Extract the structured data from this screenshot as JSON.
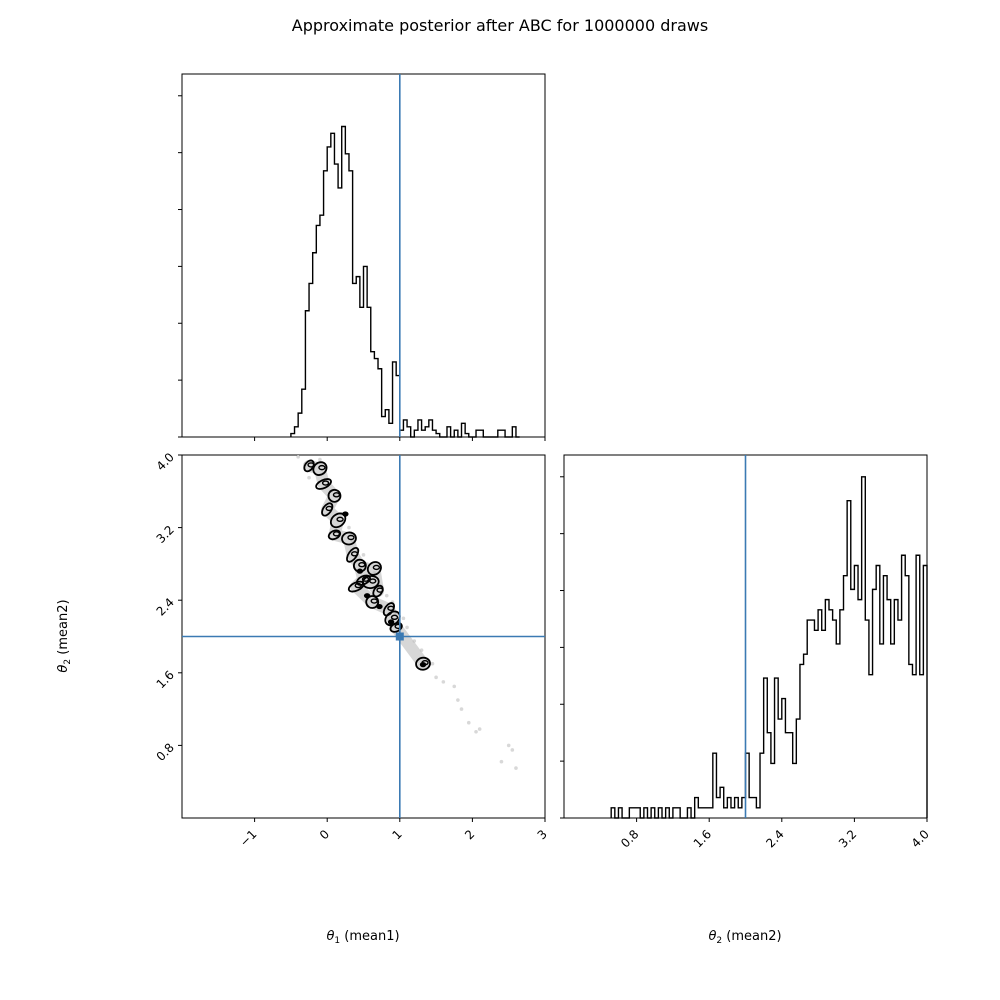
{
  "figure": {
    "title": "Approximate posterior after ABC for 1000000 draws"
  },
  "colors": {
    "truth_line": "#3b7ab3",
    "histogram": "#000000",
    "contour": "#000000",
    "scatter_points": "#d8d8d8"
  },
  "chart_data": [
    {
      "type": "histogram",
      "panel": "top-left",
      "variable": "theta_1",
      "xlim": [
        -2,
        3
      ],
      "truth_value": 1,
      "x_ticks": [
        "−1",
        "0",
        "1",
        "2",
        "3"
      ],
      "x_tick_values": [
        -1,
        0,
        1,
        2,
        3
      ],
      "y_tick_labels_shown": false,
      "bins": [
        {
          "x0": -0.5,
          "x1": -0.45,
          "h": 0.01
        },
        {
          "x0": -0.45,
          "x1": -0.4,
          "h": 0.03
        },
        {
          "x0": -0.4,
          "x1": -0.35,
          "h": 0.07
        },
        {
          "x0": -0.35,
          "x1": -0.3,
          "h": 0.14
        },
        {
          "x0": -0.3,
          "x1": -0.25,
          "h": 0.37
        },
        {
          "x0": -0.25,
          "x1": -0.2,
          "h": 0.45
        },
        {
          "x0": -0.2,
          "x1": -0.15,
          "h": 0.54
        },
        {
          "x0": -0.15,
          "x1": -0.1,
          "h": 0.62
        },
        {
          "x0": -0.1,
          "x1": -0.05,
          "h": 0.65
        },
        {
          "x0": -0.05,
          "x1": 0.0,
          "h": 0.78
        },
        {
          "x0": 0.0,
          "x1": 0.05,
          "h": 0.85
        },
        {
          "x0": 0.05,
          "x1": 0.1,
          "h": 0.89
        },
        {
          "x0": 0.1,
          "x1": 0.15,
          "h": 0.8
        },
        {
          "x0": 0.15,
          "x1": 0.2,
          "h": 0.73
        },
        {
          "x0": 0.2,
          "x1": 0.25,
          "h": 0.91
        },
        {
          "x0": 0.25,
          "x1": 0.3,
          "h": 0.83
        },
        {
          "x0": 0.3,
          "x1": 0.35,
          "h": 0.78
        },
        {
          "x0": 0.35,
          "x1": 0.4,
          "h": 0.45
        },
        {
          "x0": 0.4,
          "x1": 0.45,
          "h": 0.47
        },
        {
          "x0": 0.45,
          "x1": 0.5,
          "h": 0.38
        },
        {
          "x0": 0.5,
          "x1": 0.55,
          "h": 0.5
        },
        {
          "x0": 0.55,
          "x1": 0.6,
          "h": 0.38
        },
        {
          "x0": 0.6,
          "x1": 0.65,
          "h": 0.25
        },
        {
          "x0": 0.65,
          "x1": 0.7,
          "h": 0.23
        },
        {
          "x0": 0.7,
          "x1": 0.75,
          "h": 0.2
        },
        {
          "x0": 0.75,
          "x1": 0.8,
          "h": 0.06
        },
        {
          "x0": 0.8,
          "x1": 0.85,
          "h": 0.08
        },
        {
          "x0": 0.85,
          "x1": 0.9,
          "h": 0.04
        },
        {
          "x0": 0.9,
          "x1": 0.95,
          "h": 0.22
        },
        {
          "x0": 0.95,
          "x1": 1.0,
          "h": 0.18
        },
        {
          "x0": 1.0,
          "x1": 1.05,
          "h": 0.02
        },
        {
          "x0": 1.05,
          "x1": 1.1,
          "h": 0.05
        },
        {
          "x0": 1.1,
          "x1": 1.15,
          "h": 0.03
        },
        {
          "x0": 1.15,
          "x1": 1.2,
          "h": 0.0
        },
        {
          "x0": 1.2,
          "x1": 1.25,
          "h": 0.02
        },
        {
          "x0": 1.25,
          "x1": 1.3,
          "h": 0.05
        },
        {
          "x0": 1.3,
          "x1": 1.35,
          "h": 0.02
        },
        {
          "x0": 1.35,
          "x1": 1.4,
          "h": 0.03
        },
        {
          "x0": 1.4,
          "x1": 1.45,
          "h": 0.05
        },
        {
          "x0": 1.45,
          "x1": 1.5,
          "h": 0.02
        },
        {
          "x0": 1.5,
          "x1": 1.55,
          "h": 0.01
        },
        {
          "x0": 1.55,
          "x1": 1.65,
          "h": 0.0
        },
        {
          "x0": 1.65,
          "x1": 1.7,
          "h": 0.03
        },
        {
          "x0": 1.7,
          "x1": 1.75,
          "h": 0.0
        },
        {
          "x0": 1.75,
          "x1": 1.8,
          "h": 0.02
        },
        {
          "x0": 1.8,
          "x1": 1.85,
          "h": 0.0
        },
        {
          "x0": 1.85,
          "x1": 1.9,
          "h": 0.04
        },
        {
          "x0": 1.9,
          "x1": 1.95,
          "h": 0.01
        },
        {
          "x0": 1.95,
          "x1": 2.05,
          "h": 0.0
        },
        {
          "x0": 2.05,
          "x1": 2.15,
          "h": 0.02
        },
        {
          "x0": 2.15,
          "x1": 2.35,
          "h": 0.0
        },
        {
          "x0": 2.35,
          "x1": 2.45,
          "h": 0.02
        },
        {
          "x0": 2.45,
          "x1": 2.55,
          "h": 0.0
        },
        {
          "x0": 2.55,
          "x1": 2.6,
          "h": 0.03
        },
        {
          "x0": 2.6,
          "x1": 2.65,
          "h": 0.0
        }
      ]
    },
    {
      "type": "contour_scatter",
      "panel": "bottom-left",
      "x_variable": "theta_1",
      "y_variable": "theta_2",
      "xlim": [
        -2,
        3
      ],
      "ylim": [
        0,
        4
      ],
      "truth_point": {
        "x": 1,
        "y": 2
      },
      "x_ticks": [
        "−1",
        "0",
        "1",
        "2",
        "3"
      ],
      "x_tick_values": [
        -1,
        0,
        1,
        2,
        3
      ],
      "y_ticks": [
        "0.8",
        "1.6",
        "2.4",
        "3.2",
        "4.0"
      ],
      "y_tick_values": [
        0.8,
        1.6,
        2.4,
        3.2,
        4.0
      ],
      "ylabel": "θ2 (mean2)",
      "points": [
        {
          "x": -0.4,
          "y": 3.98
        },
        {
          "x": -0.3,
          "y": 3.9
        },
        {
          "x": -0.25,
          "y": 3.75
        },
        {
          "x": -0.1,
          "y": 3.95
        },
        {
          "x": -0.05,
          "y": 3.8
        },
        {
          "x": 0.05,
          "y": 3.6
        },
        {
          "x": 0.12,
          "y": 3.55
        },
        {
          "x": 0.2,
          "y": 3.35
        },
        {
          "x": 0.3,
          "y": 3.2
        },
        {
          "x": 0.35,
          "y": 3.05
        },
        {
          "x": 0.42,
          "y": 2.95
        },
        {
          "x": 0.5,
          "y": 2.9
        },
        {
          "x": 0.55,
          "y": 2.8
        },
        {
          "x": 0.65,
          "y": 2.7
        },
        {
          "x": 0.75,
          "y": 2.55
        },
        {
          "x": 0.82,
          "y": 2.45
        },
        {
          "x": 0.9,
          "y": 2.38
        },
        {
          "x": 0.95,
          "y": 2.25
        },
        {
          "x": 1.05,
          "y": 2.2
        },
        {
          "x": 1.1,
          "y": 2.1
        },
        {
          "x": 1.2,
          "y": 1.95
        },
        {
          "x": 1.3,
          "y": 1.85
        },
        {
          "x": 1.45,
          "y": 1.7
        },
        {
          "x": 1.5,
          "y": 1.55
        },
        {
          "x": 1.6,
          "y": 1.5
        },
        {
          "x": 1.75,
          "y": 1.45
        },
        {
          "x": 1.8,
          "y": 1.3
        },
        {
          "x": 1.85,
          "y": 1.2
        },
        {
          "x": 1.95,
          "y": 1.05
        },
        {
          "x": 2.05,
          "y": 0.95
        },
        {
          "x": 2.1,
          "y": 0.98
        },
        {
          "x": 2.5,
          "y": 0.8
        },
        {
          "x": 2.55,
          "y": 0.75
        },
        {
          "x": 2.4,
          "y": 0.62
        },
        {
          "x": 2.6,
          "y": 0.55
        }
      ],
      "blobs": [
        {
          "x": -0.25,
          "y": 3.88
        },
        {
          "x": -0.1,
          "y": 3.85
        },
        {
          "x": -0.05,
          "y": 3.68
        },
        {
          "x": 0.1,
          "y": 3.55
        },
        {
          "x": 0.0,
          "y": 3.4
        },
        {
          "x": 0.15,
          "y": 3.28
        },
        {
          "x": 0.1,
          "y": 3.12
        },
        {
          "x": 0.3,
          "y": 3.08
        },
        {
          "x": 0.35,
          "y": 2.9
        },
        {
          "x": 0.45,
          "y": 2.78
        },
        {
          "x": 0.5,
          "y": 2.62
        },
        {
          "x": 0.6,
          "y": 2.6
        },
        {
          "x": 0.7,
          "y": 2.5
        },
        {
          "x": 0.65,
          "y": 2.75
        },
        {
          "x": 0.4,
          "y": 2.55
        },
        {
          "x": 0.62,
          "y": 2.38
        },
        {
          "x": 0.85,
          "y": 2.3
        },
        {
          "x": 0.9,
          "y": 2.2
        },
        {
          "x": 0.95,
          "y": 2.1
        },
        {
          "x": 1.32,
          "y": 1.7
        }
      ],
      "filled_blobs": [
        {
          "x": 0.25,
          "y": 3.35
        },
        {
          "x": 0.45,
          "y": 2.72
        },
        {
          "x": 0.55,
          "y": 2.45
        },
        {
          "x": 0.72,
          "y": 2.33
        },
        {
          "x": 0.88,
          "y": 2.16
        },
        {
          "x": 1.32,
          "y": 1.69
        }
      ]
    },
    {
      "type": "histogram",
      "panel": "bottom-right",
      "variable": "theta_2",
      "xlim": [
        0,
        4
      ],
      "truth_value": 2,
      "x_ticks": [
        "0.8",
        "1.6",
        "2.4",
        "3.2",
        "4.0"
      ],
      "x_tick_values": [
        0.8,
        1.6,
        2.4,
        3.2,
        4.0
      ],
      "y_tick_labels_shown": false,
      "bins": [
        {
          "x0": 0.52,
          "x1": 0.56,
          "h": 0.03
        },
        {
          "x0": 0.56,
          "x1": 0.6,
          "h": 0.0
        },
        {
          "x0": 0.6,
          "x1": 0.64,
          "h": 0.03
        },
        {
          "x0": 0.64,
          "x1": 0.72,
          "h": 0.0
        },
        {
          "x0": 0.72,
          "x1": 0.84,
          "h": 0.03
        },
        {
          "x0": 0.84,
          "x1": 0.88,
          "h": 0.0
        },
        {
          "x0": 0.88,
          "x1": 0.92,
          "h": 0.03
        },
        {
          "x0": 0.92,
          "x1": 0.96,
          "h": 0.0
        },
        {
          "x0": 0.96,
          "x1": 1.0,
          "h": 0.03
        },
        {
          "x0": 1.0,
          "x1": 1.04,
          "h": 0.0
        },
        {
          "x0": 1.04,
          "x1": 1.08,
          "h": 0.03
        },
        {
          "x0": 1.08,
          "x1": 1.12,
          "h": 0.0
        },
        {
          "x0": 1.12,
          "x1": 1.16,
          "h": 0.03
        },
        {
          "x0": 1.16,
          "x1": 1.2,
          "h": 0.0
        },
        {
          "x0": 1.2,
          "x1": 1.28,
          "h": 0.03
        },
        {
          "x0": 1.28,
          "x1": 1.36,
          "h": 0.0
        },
        {
          "x0": 1.36,
          "x1": 1.4,
          "h": 0.03
        },
        {
          "x0": 1.4,
          "x1": 1.44,
          "h": 0.0
        },
        {
          "x0": 1.44,
          "x1": 1.48,
          "h": 0.06
        },
        {
          "x0": 1.48,
          "x1": 1.52,
          "h": 0.03
        },
        {
          "x0": 1.52,
          "x1": 1.64,
          "h": 0.03
        },
        {
          "x0": 1.64,
          "x1": 1.68,
          "h": 0.19
        },
        {
          "x0": 1.68,
          "x1": 1.72,
          "h": 0.06
        },
        {
          "x0": 1.72,
          "x1": 1.76,
          "h": 0.09
        },
        {
          "x0": 1.76,
          "x1": 1.8,
          "h": 0.03
        },
        {
          "x0": 1.8,
          "x1": 1.84,
          "h": 0.06
        },
        {
          "x0": 1.84,
          "x1": 1.88,
          "h": 0.03
        },
        {
          "x0": 1.88,
          "x1": 1.92,
          "h": 0.06
        },
        {
          "x0": 1.92,
          "x1": 1.96,
          "h": 0.03
        },
        {
          "x0": 1.96,
          "x1": 2.0,
          "h": 0.06
        },
        {
          "x0": 2.0,
          "x1": 2.04,
          "h": 0.19
        },
        {
          "x0": 2.04,
          "x1": 2.12,
          "h": 0.06
        },
        {
          "x0": 2.12,
          "x1": 2.16,
          "h": 0.03
        },
        {
          "x0": 2.16,
          "x1": 2.2,
          "h": 0.19
        },
        {
          "x0": 2.2,
          "x1": 2.24,
          "h": 0.41
        },
        {
          "x0": 2.24,
          "x1": 2.28,
          "h": 0.25
        },
        {
          "x0": 2.28,
          "x1": 2.32,
          "h": 0.16
        },
        {
          "x0": 2.32,
          "x1": 2.36,
          "h": 0.41
        },
        {
          "x0": 2.36,
          "x1": 2.4,
          "h": 0.29
        },
        {
          "x0": 2.4,
          "x1": 2.44,
          "h": 0.35
        },
        {
          "x0": 2.44,
          "x1": 2.52,
          "h": 0.25
        },
        {
          "x0": 2.52,
          "x1": 2.56,
          "h": 0.16
        },
        {
          "x0": 2.56,
          "x1": 2.6,
          "h": 0.29
        },
        {
          "x0": 2.6,
          "x1": 2.64,
          "h": 0.45
        },
        {
          "x0": 2.64,
          "x1": 2.68,
          "h": 0.48
        },
        {
          "x0": 2.68,
          "x1": 2.76,
          "h": 0.58
        },
        {
          "x0": 2.76,
          "x1": 2.8,
          "h": 0.55
        },
        {
          "x0": 2.8,
          "x1": 2.84,
          "h": 0.61
        },
        {
          "x0": 2.84,
          "x1": 2.88,
          "h": 0.55
        },
        {
          "x0": 2.88,
          "x1": 2.92,
          "h": 0.64
        },
        {
          "x0": 2.92,
          "x1": 2.96,
          "h": 0.61
        },
        {
          "x0": 2.96,
          "x1": 3.0,
          "h": 0.58
        },
        {
          "x0": 3.0,
          "x1": 3.04,
          "h": 0.51
        },
        {
          "x0": 3.04,
          "x1": 3.08,
          "h": 0.61
        },
        {
          "x0": 3.08,
          "x1": 3.12,
          "h": 0.71
        },
        {
          "x0": 3.12,
          "x1": 3.16,
          "h": 0.93
        },
        {
          "x0": 3.16,
          "x1": 3.2,
          "h": 0.67
        },
        {
          "x0": 3.2,
          "x1": 3.24,
          "h": 0.74
        },
        {
          "x0": 3.24,
          "x1": 3.28,
          "h": 0.64
        },
        {
          "x0": 3.28,
          "x1": 3.32,
          "h": 1.0
        },
        {
          "x0": 3.32,
          "x1": 3.36,
          "h": 0.58
        },
        {
          "x0": 3.36,
          "x1": 3.4,
          "h": 0.42
        },
        {
          "x0": 3.4,
          "x1": 3.44,
          "h": 0.67
        },
        {
          "x0": 3.44,
          "x1": 3.48,
          "h": 0.74
        },
        {
          "x0": 3.48,
          "x1": 3.52,
          "h": 0.51
        },
        {
          "x0": 3.52,
          "x1": 3.56,
          "h": 0.71
        },
        {
          "x0": 3.56,
          "x1": 3.6,
          "h": 0.64
        },
        {
          "x0": 3.6,
          "x1": 3.64,
          "h": 0.51
        },
        {
          "x0": 3.64,
          "x1": 3.68,
          "h": 0.64
        },
        {
          "x0": 3.68,
          "x1": 3.72,
          "h": 0.58
        },
        {
          "x0": 3.72,
          "x1": 3.76,
          "h": 0.77
        },
        {
          "x0": 3.76,
          "x1": 3.8,
          "h": 0.71
        },
        {
          "x0": 3.8,
          "x1": 3.84,
          "h": 0.45
        },
        {
          "x0": 3.84,
          "x1": 3.88,
          "h": 0.42
        },
        {
          "x0": 3.88,
          "x1": 3.92,
          "h": 0.77
        },
        {
          "x0": 3.92,
          "x1": 3.96,
          "h": 0.42
        },
        {
          "x0": 3.96,
          "x1": 4.0,
          "h": 0.74
        }
      ]
    }
  ],
  "axis_labels": {
    "theta1": {
      "symbol": "θ",
      "sub": "1",
      "rest": " (mean1)"
    },
    "theta2": {
      "symbol": "θ",
      "sub": "2",
      "rest": " (mean2)"
    }
  }
}
